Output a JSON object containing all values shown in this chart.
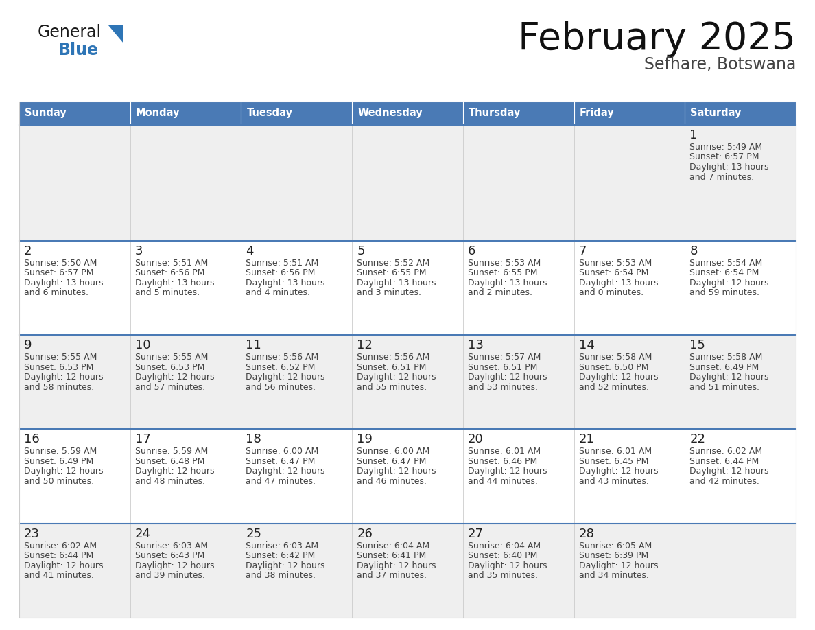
{
  "title": "February 2025",
  "subtitle": "Sefhare, Botswana",
  "days_of_week": [
    "Sunday",
    "Monday",
    "Tuesday",
    "Wednesday",
    "Thursday",
    "Friday",
    "Saturday"
  ],
  "header_bg": "#4a7ab5",
  "header_text": "#ffffff",
  "row1_bg": "#efefef",
  "row2_bg": "#ffffff",
  "row3_bg": "#efefef",
  "row4_bg": "#ffffff",
  "row5_bg": "#efefef",
  "cell_border_color": "#4a7ab5",
  "cell_line_color": "#cccccc",
  "day_number_color": "#222222",
  "info_text_color": "#444444",
  "title_color": "#111111",
  "subtitle_color": "#444444",
  "logo_general_color": "#1a1a1a",
  "logo_blue_color": "#2e75b6",
  "calendar_data": [
    [
      null,
      null,
      null,
      null,
      null,
      null,
      {
        "day": 1,
        "sunrise": "5:49 AM",
        "sunset": "6:57 PM",
        "daylight_h": "13 hours",
        "daylight_m": "and 7 minutes."
      }
    ],
    [
      {
        "day": 2,
        "sunrise": "5:50 AM",
        "sunset": "6:57 PM",
        "daylight_h": "13 hours",
        "daylight_m": "and 6 minutes."
      },
      {
        "day": 3,
        "sunrise": "5:51 AM",
        "sunset": "6:56 PM",
        "daylight_h": "13 hours",
        "daylight_m": "and 5 minutes."
      },
      {
        "day": 4,
        "sunrise": "5:51 AM",
        "sunset": "6:56 PM",
        "daylight_h": "13 hours",
        "daylight_m": "and 4 minutes."
      },
      {
        "day": 5,
        "sunrise": "5:52 AM",
        "sunset": "6:55 PM",
        "daylight_h": "13 hours",
        "daylight_m": "and 3 minutes."
      },
      {
        "day": 6,
        "sunrise": "5:53 AM",
        "sunset": "6:55 PM",
        "daylight_h": "13 hours",
        "daylight_m": "and 2 minutes."
      },
      {
        "day": 7,
        "sunrise": "5:53 AM",
        "sunset": "6:54 PM",
        "daylight_h": "13 hours",
        "daylight_m": "and 0 minutes."
      },
      {
        "day": 8,
        "sunrise": "5:54 AM",
        "sunset": "6:54 PM",
        "daylight_h": "12 hours",
        "daylight_m": "and 59 minutes."
      }
    ],
    [
      {
        "day": 9,
        "sunrise": "5:55 AM",
        "sunset": "6:53 PM",
        "daylight_h": "12 hours",
        "daylight_m": "and 58 minutes."
      },
      {
        "day": 10,
        "sunrise": "5:55 AM",
        "sunset": "6:53 PM",
        "daylight_h": "12 hours",
        "daylight_m": "and 57 minutes."
      },
      {
        "day": 11,
        "sunrise": "5:56 AM",
        "sunset": "6:52 PM",
        "daylight_h": "12 hours",
        "daylight_m": "and 56 minutes."
      },
      {
        "day": 12,
        "sunrise": "5:56 AM",
        "sunset": "6:51 PM",
        "daylight_h": "12 hours",
        "daylight_m": "and 55 minutes."
      },
      {
        "day": 13,
        "sunrise": "5:57 AM",
        "sunset": "6:51 PM",
        "daylight_h": "12 hours",
        "daylight_m": "and 53 minutes."
      },
      {
        "day": 14,
        "sunrise": "5:58 AM",
        "sunset": "6:50 PM",
        "daylight_h": "12 hours",
        "daylight_m": "and 52 minutes."
      },
      {
        "day": 15,
        "sunrise": "5:58 AM",
        "sunset": "6:49 PM",
        "daylight_h": "12 hours",
        "daylight_m": "and 51 minutes."
      }
    ],
    [
      {
        "day": 16,
        "sunrise": "5:59 AM",
        "sunset": "6:49 PM",
        "daylight_h": "12 hours",
        "daylight_m": "and 50 minutes."
      },
      {
        "day": 17,
        "sunrise": "5:59 AM",
        "sunset": "6:48 PM",
        "daylight_h": "12 hours",
        "daylight_m": "and 48 minutes."
      },
      {
        "day": 18,
        "sunrise": "6:00 AM",
        "sunset": "6:47 PM",
        "daylight_h": "12 hours",
        "daylight_m": "and 47 minutes."
      },
      {
        "day": 19,
        "sunrise": "6:00 AM",
        "sunset": "6:47 PM",
        "daylight_h": "12 hours",
        "daylight_m": "and 46 minutes."
      },
      {
        "day": 20,
        "sunrise": "6:01 AM",
        "sunset": "6:46 PM",
        "daylight_h": "12 hours",
        "daylight_m": "and 44 minutes."
      },
      {
        "day": 21,
        "sunrise": "6:01 AM",
        "sunset": "6:45 PM",
        "daylight_h": "12 hours",
        "daylight_m": "and 43 minutes."
      },
      {
        "day": 22,
        "sunrise": "6:02 AM",
        "sunset": "6:44 PM",
        "daylight_h": "12 hours",
        "daylight_m": "and 42 minutes."
      }
    ],
    [
      {
        "day": 23,
        "sunrise": "6:02 AM",
        "sunset": "6:44 PM",
        "daylight_h": "12 hours",
        "daylight_m": "and 41 minutes."
      },
      {
        "day": 24,
        "sunrise": "6:03 AM",
        "sunset": "6:43 PM",
        "daylight_h": "12 hours",
        "daylight_m": "and 39 minutes."
      },
      {
        "day": 25,
        "sunrise": "6:03 AM",
        "sunset": "6:42 PM",
        "daylight_h": "12 hours",
        "daylight_m": "and 38 minutes."
      },
      {
        "day": 26,
        "sunrise": "6:04 AM",
        "sunset": "6:41 PM",
        "daylight_h": "12 hours",
        "daylight_m": "and 37 minutes."
      },
      {
        "day": 27,
        "sunrise": "6:04 AM",
        "sunset": "6:40 PM",
        "daylight_h": "12 hours",
        "daylight_m": "and 35 minutes."
      },
      {
        "day": 28,
        "sunrise": "6:05 AM",
        "sunset": "6:39 PM",
        "daylight_h": "12 hours",
        "daylight_m": "and 34 minutes."
      },
      null
    ]
  ],
  "row_bg_colors": [
    "#efefef",
    "#ffffff",
    "#efefef",
    "#ffffff",
    "#efefef"
  ]
}
